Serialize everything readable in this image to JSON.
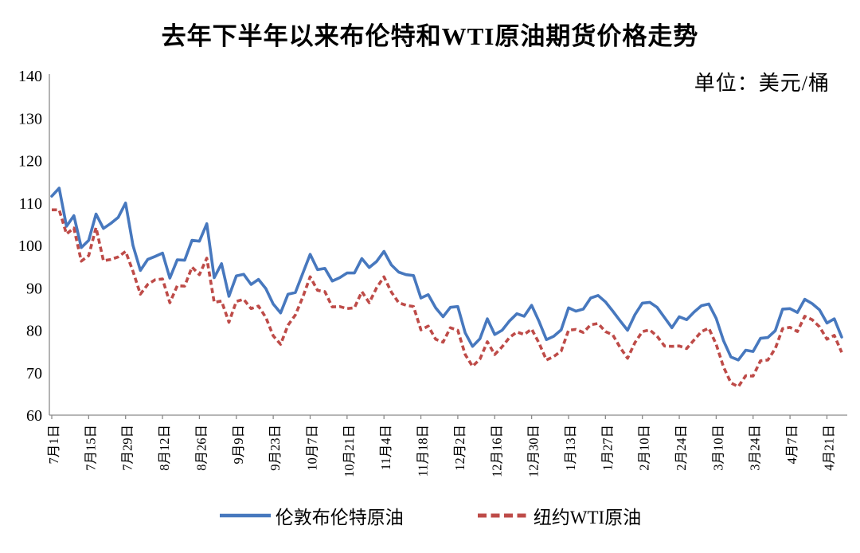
{
  "page": {
    "title": "去年下半年以来布伦特和WTI原油期货价格走势",
    "unit_label": "单位：美元/桶"
  },
  "legend": {
    "items": [
      {
        "label": "伦敦布伦特原油",
        "color": "#4778BE",
        "line_style": "solid"
      },
      {
        "label": "纽约WTI原油",
        "color": "#BE4B48",
        "line_style": "dashed"
      }
    ]
  },
  "chart_data": {
    "type": "line",
    "title": "去年下半年以来布伦特和WTI原油期货价格走势",
    "unit": "美元/桶",
    "xlabel": "",
    "ylabel": "",
    "ylim": [
      60,
      140
    ],
    "y_ticks": [
      60,
      70,
      80,
      90,
      100,
      110,
      120,
      130,
      140
    ],
    "grid": false,
    "legend_position": "bottom",
    "axis_color": "#8a8a8a",
    "x_tick_labels": [
      "7月1日",
      "7月15日",
      "7月29日",
      "8月12日",
      "8月26日",
      "9月9日",
      "9月23日",
      "10月7日",
      "10月21日",
      "11月4日",
      "11月18日",
      "12月2日",
      "12月16日",
      "12月30日",
      "1月13日",
      "1月27日",
      "2月10日",
      "2月24日",
      "3月10日",
      "3月24日",
      "4月7日",
      "4月21日"
    ],
    "points_per_tick": 5,
    "series": [
      {
        "name": "伦敦布伦特原油",
        "color": "#4778BE",
        "line_style": "solid",
        "values": [
          111.6,
          113.5,
          104.5,
          107.0,
          99.5,
          101.2,
          107.4,
          104.0,
          105.2,
          106.6,
          110.0,
          100.0,
          94.1,
          96.7,
          97.4,
          98.2,
          92.3,
          96.6,
          96.5,
          101.2,
          101.0,
          105.1,
          92.4,
          95.7,
          88.0,
          92.8,
          93.2,
          90.8,
          92.0,
          89.8,
          86.2,
          84.1,
          88.5,
          88.9,
          93.4,
          97.9,
          94.3,
          94.6,
          91.6,
          92.4,
          93.5,
          93.5,
          96.9,
          94.8,
          96.2,
          98.6,
          95.4,
          93.7,
          93.1,
          92.9,
          87.6,
          88.4,
          85.3,
          83.2,
          85.4,
          85.6,
          79.4,
          76.2,
          78.0,
          82.7,
          79.0,
          80.0,
          82.2,
          83.9,
          83.3,
          85.9,
          82.1,
          77.8,
          78.6,
          80.1,
          85.3,
          84.5,
          85.0,
          87.6,
          88.2,
          86.7,
          84.5,
          82.2,
          80.0,
          83.7,
          86.4,
          86.6,
          85.4,
          83.0,
          80.6,
          83.2,
          82.5,
          84.3,
          85.8,
          86.2,
          82.8,
          77.5,
          73.7,
          73.0,
          75.3,
          75.0,
          78.1,
          78.3,
          79.9,
          85.0,
          85.1,
          84.2,
          87.3,
          86.3,
          84.8,
          81.7,
          82.7,
          78.4
        ]
      },
      {
        "name": "纽约WTI原油",
        "color": "#BE4B48",
        "line_style": "dashed",
        "values": [
          108.4,
          108.4,
          102.7,
          104.1,
          96.3,
          97.6,
          104.2,
          96.4,
          96.7,
          97.3,
          98.6,
          93.9,
          88.5,
          90.8,
          91.9,
          92.1,
          86.5,
          90.5,
          90.4,
          94.9,
          93.1,
          97.0,
          86.6,
          86.9,
          81.9,
          86.8,
          87.3,
          85.1,
          85.7,
          83.0,
          78.7,
          76.7,
          81.2,
          83.6,
          87.8,
          92.6,
          89.4,
          89.1,
          85.5,
          85.6,
          85.1,
          85.3,
          89.1,
          86.5,
          90.0,
          92.6,
          89.0,
          86.5,
          85.9,
          85.6,
          80.1,
          81.0,
          77.9,
          77.2,
          80.6,
          80.0,
          74.3,
          71.5,
          73.2,
          77.3,
          74.3,
          76.1,
          78.3,
          79.6,
          79.0,
          80.3,
          77.0,
          73.0,
          73.8,
          75.1,
          80.0,
          80.2,
          79.5,
          81.3,
          81.6,
          79.7,
          78.9,
          75.9,
          73.4,
          77.1,
          79.7,
          80.1,
          78.6,
          76.3,
          76.2,
          76.3,
          75.7,
          77.7,
          79.7,
          80.5,
          76.7,
          71.3,
          67.6,
          66.7,
          69.3,
          69.2,
          72.8,
          73.0,
          75.7,
          80.4,
          80.7,
          79.7,
          83.3,
          82.5,
          80.8,
          77.9,
          78.8,
          74.8
        ]
      }
    ]
  }
}
